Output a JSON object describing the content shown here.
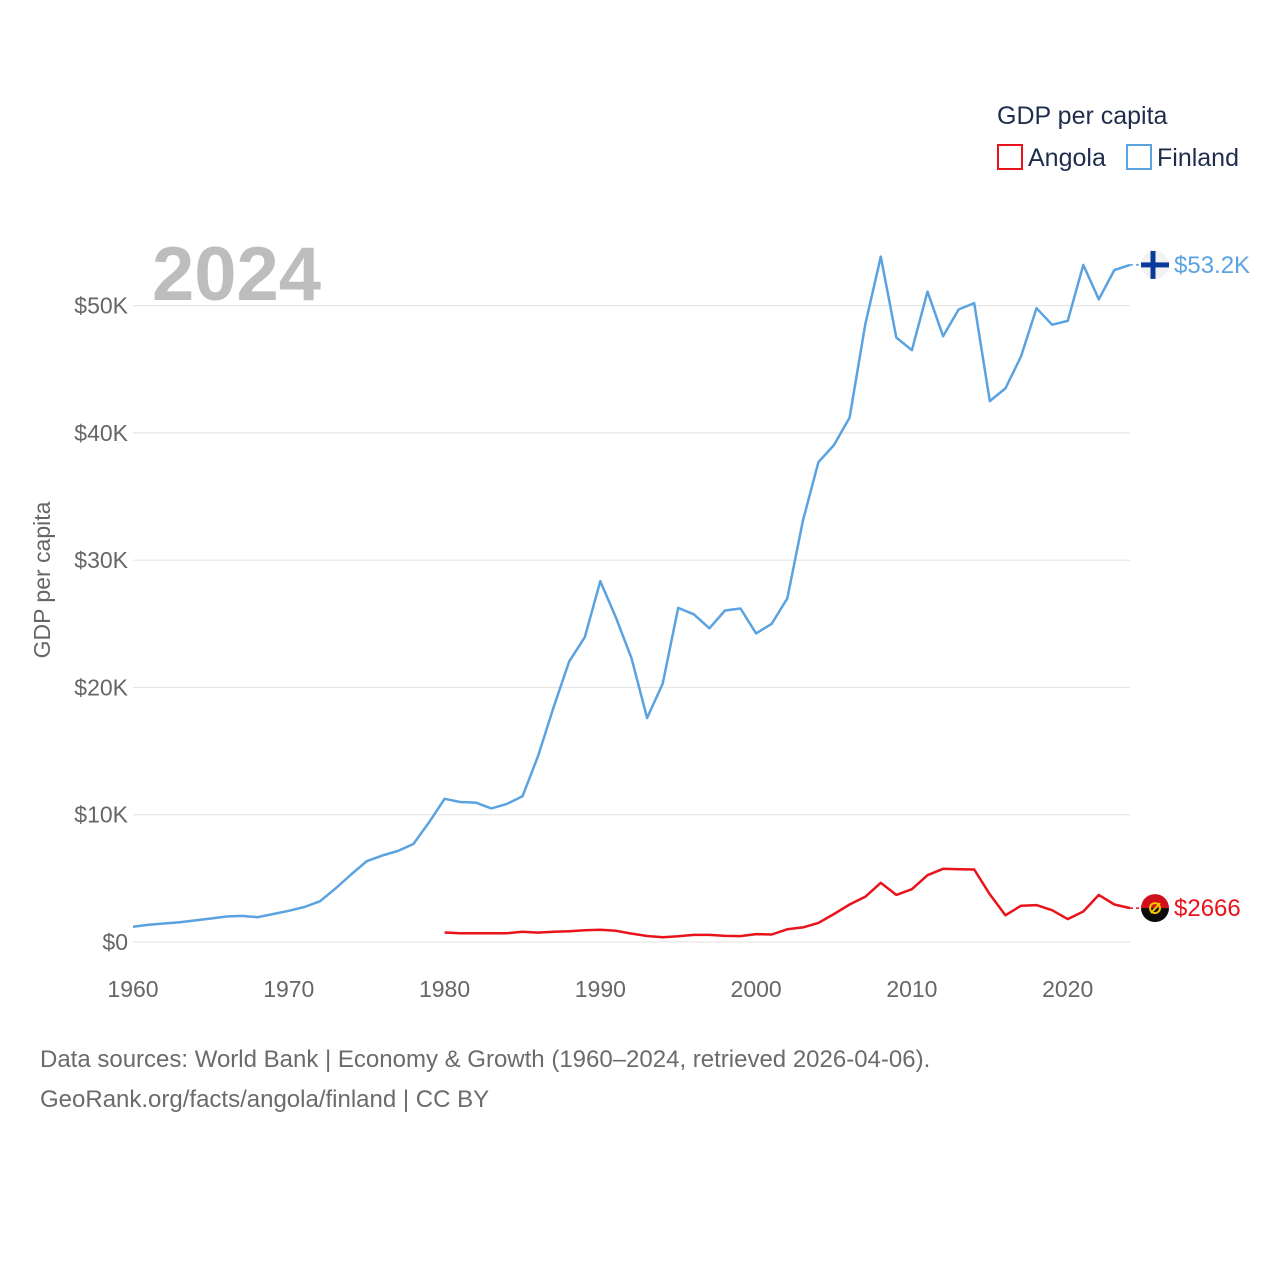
{
  "chart_data": {
    "type": "line",
    "title": "GDP per capita",
    "ylabel": "GDP per capita",
    "xlabel": "",
    "current_year_label": "2024",
    "xlim": [
      1960,
      2024
    ],
    "ylim": [
      0,
      55000
    ],
    "x_ticks": [
      1960,
      1970,
      1980,
      1990,
      2000,
      2010,
      2020
    ],
    "y_ticks": [
      {
        "value": 0,
        "label": "$0"
      },
      {
        "value": 10000,
        "label": "$10K"
      },
      {
        "value": 20000,
        "label": "$20K"
      },
      {
        "value": 30000,
        "label": "$30K"
      },
      {
        "value": 40000,
        "label": "$40K"
      },
      {
        "value": 50000,
        "label": "$50K"
      }
    ],
    "grid": true,
    "legend": {
      "title": "GDP per capita",
      "placement": "top-right"
    },
    "series": [
      {
        "name": "Angola",
        "color": "#e8131b",
        "end_label": "$2666",
        "flag_icon": "angola-flag-icon",
        "x": [
          1980,
          1981,
          1982,
          1983,
          1984,
          1985,
          1986,
          1987,
          1988,
          1989,
          1990,
          1991,
          1992,
          1993,
          1994,
          1995,
          1996,
          1997,
          1998,
          1999,
          2000,
          2001,
          2002,
          2003,
          2004,
          2005,
          2006,
          2007,
          2008,
          2009,
          2010,
          2011,
          2012,
          2013,
          2014,
          2015,
          2016,
          2017,
          2018,
          2019,
          2020,
          2021,
          2022,
          2023,
          2024
        ],
        "values": [
          750,
          680,
          680,
          680,
          690,
          800,
          740,
          800,
          850,
          930,
          970,
          880,
          660,
          470,
          380,
          450,
          560,
          560,
          480,
          460,
          620,
          590,
          1000,
          1150,
          1500,
          2200,
          2950,
          3550,
          4650,
          3700,
          4150,
          5250,
          5750,
          5720,
          5700,
          3750,
          2100,
          2850,
          2900,
          2500,
          1800,
          2400,
          3700,
          2950,
          2666
        ]
      },
      {
        "name": "Finland",
        "color": "#5aa3e0",
        "end_label": "$53.2K",
        "flag_icon": "finland-flag-icon",
        "x": [
          1960,
          1961,
          1962,
          1963,
          1964,
          1965,
          1966,
          1967,
          1968,
          1969,
          1970,
          1971,
          1972,
          1973,
          1974,
          1975,
          1976,
          1977,
          1978,
          1979,
          1980,
          1981,
          1982,
          1983,
          1984,
          1985,
          1986,
          1987,
          1988,
          1989,
          1990,
          1991,
          1992,
          1993,
          1994,
          1995,
          1996,
          1997,
          1998,
          1999,
          2000,
          2001,
          2002,
          2003,
          2004,
          2005,
          2006,
          2007,
          2008,
          2009,
          2010,
          2011,
          2012,
          2013,
          2014,
          2015,
          2016,
          2017,
          2018,
          2019,
          2020,
          2021,
          2022,
          2023,
          2024
        ],
        "values": [
          1200,
          1350,
          1450,
          1550,
          1700,
          1850,
          2000,
          2050,
          1950,
          2200,
          2450,
          2750,
          3200,
          4200,
          5300,
          6350,
          6800,
          7150,
          7700,
          9400,
          11250,
          11000,
          10950,
          10500,
          10850,
          11450,
          14600,
          18450,
          22050,
          23950,
          28350,
          25500,
          22300,
          17600,
          20300,
          26250,
          25750,
          24650,
          26050,
          26200,
          24250,
          25000,
          27000,
          33100,
          37700,
          39050,
          41200,
          48500,
          53850,
          47500,
          46500,
          51100,
          47600,
          49700,
          50200,
          42500,
          43500,
          46000,
          49800,
          48500,
          48800,
          53200,
          50500,
          52800,
          53200
        ]
      }
    ]
  },
  "source": {
    "line1": "Data sources: World Bank | Economy & Growth (1960–2024, retrieved 2026-04-06).",
    "line2": "GeoRank.org/facts/angola/finland | CC BY"
  }
}
